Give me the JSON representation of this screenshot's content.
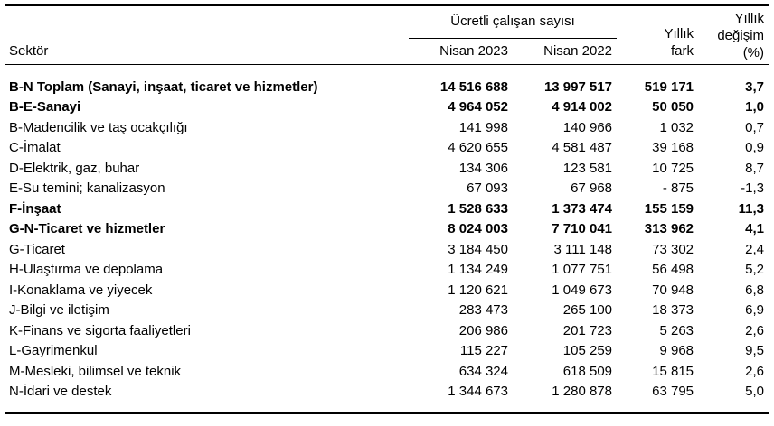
{
  "colors": {
    "text": "#000000",
    "background": "#ffffff",
    "rule": "#000000"
  },
  "table": {
    "headers": {
      "sector": "Sektör",
      "group": "Ücretli çalışan sayısı",
      "col_2023": "Nisan 2023",
      "col_2022": "Nisan 2022",
      "fark_line1": "Yıllık",
      "fark_line2": "fark",
      "degisim_line1": "Yıllık",
      "degisim_line2": "değişim",
      "degisim_line3": "(%)"
    },
    "rows": [
      {
        "sector": "B-N Toplam (Sanayi, inşaat, ticaret ve hizmetler)",
        "nisan2023": "14 516 688",
        "nisan2022": "13 997 517",
        "fark": "519 171",
        "pct": "3,7",
        "bold": true
      },
      {
        "sector": "B-E-Sanayi",
        "nisan2023": "4 964 052",
        "nisan2022": "4 914 002",
        "fark": "50 050",
        "pct": "1,0",
        "bold": true
      },
      {
        "sector": "B-Madencilik ve taş ocakçılığı",
        "nisan2023": "141 998",
        "nisan2022": "140 966",
        "fark": "1 032",
        "pct": "0,7",
        "bold": false
      },
      {
        "sector": "C-İmalat",
        "nisan2023": "4 620 655",
        "nisan2022": "4 581 487",
        "fark": "39 168",
        "pct": "0,9",
        "bold": false
      },
      {
        "sector": "D-Elektrik, gaz, buhar",
        "nisan2023": "134 306",
        "nisan2022": "123 581",
        "fark": "10 725",
        "pct": "8,7",
        "bold": false
      },
      {
        "sector": "E-Su temini; kanalizasyon",
        "nisan2023": "67 093",
        "nisan2022": "67 968",
        "fark": "- 875",
        "pct": "-1,3",
        "bold": false
      },
      {
        "sector": "F-İnşaat",
        "nisan2023": "1 528 633",
        "nisan2022": "1 373 474",
        "fark": "155 159",
        "pct": "11,3",
        "bold": true
      },
      {
        "sector": "G-N-Ticaret ve hizmetler",
        "nisan2023": "8 024 003",
        "nisan2022": "7 710 041",
        "fark": "313 962",
        "pct": "4,1",
        "bold": true
      },
      {
        "sector": "G-Ticaret",
        "nisan2023": "3 184 450",
        "nisan2022": "3 111 148",
        "fark": "73 302",
        "pct": "2,4",
        "bold": false
      },
      {
        "sector": "H-Ulaştırma ve depolama",
        "nisan2023": "1 134 249",
        "nisan2022": "1 077 751",
        "fark": "56 498",
        "pct": "5,2",
        "bold": false
      },
      {
        "sector": "I-Konaklama ve yiyecek",
        "nisan2023": "1 120 621",
        "nisan2022": "1 049 673",
        "fark": "70 948",
        "pct": "6,8",
        "bold": false
      },
      {
        "sector": "J-Bilgi ve iletişim",
        "nisan2023": "283 473",
        "nisan2022": "265 100",
        "fark": "18 373",
        "pct": "6,9",
        "bold": false
      },
      {
        "sector": "K-Finans ve sigorta faaliyetleri",
        "nisan2023": "206 986",
        "nisan2022": "201 723",
        "fark": "5 263",
        "pct": "2,6",
        "bold": false
      },
      {
        "sector": "L-Gayrimenkul",
        "nisan2023": "115 227",
        "nisan2022": "105 259",
        "fark": "9 968",
        "pct": "9,5",
        "bold": false
      },
      {
        "sector": "M-Mesleki, bilimsel ve teknik",
        "nisan2023": "634 324",
        "nisan2022": "618 509",
        "fark": "15 815",
        "pct": "2,6",
        "bold": false
      },
      {
        "sector": "N-İdari ve destek",
        "nisan2023": "1 344 673",
        "nisan2022": "1 280 878",
        "fark": "63 795",
        "pct": "5,0",
        "bold": false
      }
    ]
  }
}
